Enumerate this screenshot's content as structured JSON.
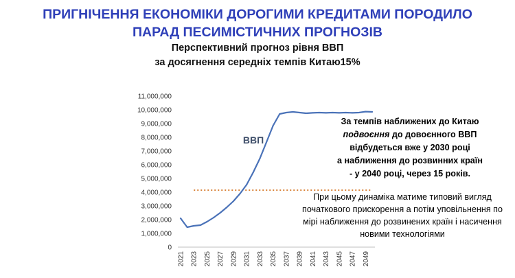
{
  "headline": {
    "line1": "ПРИГНІЧЕННЯ ЕКОНОМІКИ ДОРОГИМИ КРЕДИТАМИ ПОРОДИЛО",
    "line2": "ПАРАД ПЕСИМІСТИЧНИХ ПРОГНОЗІВ"
  },
  "subtitle": {
    "line1": "Перспективний прогноз рівня ВВП",
    "line2": "за досягнення середніх темпів Китаю15%"
  },
  "notes": {
    "note1_line1": "За темпів наближених до Китаю",
    "note1_line2_em": "подвоєння",
    "note1_line2_rest": " до довоєнного ВВП",
    "note1_line3": "відбудеться вже у 2030 році",
    "note1_line4": "а наближення до розвинних країн",
    "note1_line5": "-    у 2040 році, через 15 років.",
    "note2": "При цьому динаміка матиме типовий вигляд початкового прискорення а потім уповільнення по мірі наближення до розвинених країн і насичення новими технологіями"
  },
  "colors": {
    "headline": "#2e3fb8",
    "line": "#4a72b8",
    "reference": "#d9843b",
    "series_label": "#3f4f6a",
    "axis_text": "#333333",
    "axis_line": "#bfbfbf"
  },
  "chart_data": {
    "type": "line",
    "x": [
      2021,
      2022,
      2023,
      2024,
      2025,
      2026,
      2027,
      2028,
      2029,
      2030,
      2031,
      2032,
      2033,
      2034,
      2035,
      2036,
      2037,
      2038,
      2039,
      2040,
      2041,
      2042,
      2043,
      2044,
      2045,
      2046,
      2047,
      2048,
      2049,
      2050
    ],
    "x_tick_labels": [
      "2021",
      "2023",
      "2025",
      "2027",
      "2029",
      "2031",
      "2033",
      "2035",
      "2037",
      "2039",
      "2041",
      "2043",
      "2045",
      "2047",
      "2049"
    ],
    "series": [
      {
        "name": "ВВП",
        "values": [
          2100000,
          1450000,
          1550000,
          1600000,
          1850000,
          2150000,
          2500000,
          2900000,
          3350000,
          3900000,
          4550000,
          5450000,
          6450000,
          7650000,
          8850000,
          9700000,
          9800000,
          9850000,
          9800000,
          9750000,
          9780000,
          9800000,
          9780000,
          9800000,
          9780000,
          9800000,
          9780000,
          9800000,
          9870000,
          9850000
        ]
      }
    ],
    "reference_line": {
      "value": 4150000,
      "style": "dotted"
    },
    "ylim": [
      0,
      11000000
    ],
    "y_ticks": [
      0,
      1000000,
      2000000,
      3000000,
      4000000,
      5000000,
      6000000,
      7000000,
      8000000,
      9000000,
      10000000,
      11000000
    ],
    "y_tick_labels": [
      "0",
      "1,000,000",
      "2,000,000",
      "3,000,000",
      "4,000,000",
      "5,000,000",
      "6,000,000",
      "7,000,000",
      "8,000,000",
      "9,000,000",
      "10,000,000",
      "11,000,000"
    ],
    "grid": false,
    "legend": "none"
  }
}
